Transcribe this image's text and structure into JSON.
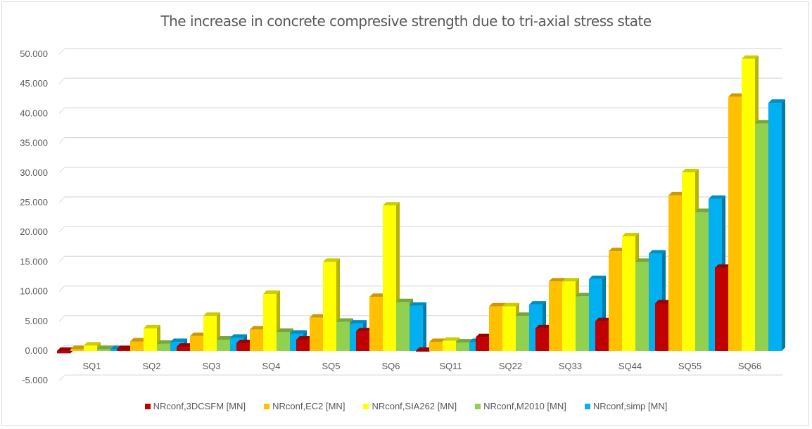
{
  "chart_data": {
    "type": "bar",
    "title": "The increase in concrete compresive strength due to tri-axial stress state",
    "xlabel": "",
    "ylabel": "",
    "ylim": [
      -5,
      50
    ],
    "yticks": [
      -5,
      0,
      5,
      10,
      15,
      20,
      25,
      30,
      35,
      40,
      45,
      50
    ],
    "ytick_labels": [
      "-5.000",
      "0.000",
      "5.000",
      "10.000",
      "15.000",
      "20.000",
      "25.000",
      "30.000",
      "35.000",
      "40.000",
      "45.000",
      "50.000"
    ],
    "grid": true,
    "legend_position": "bottom",
    "style": "3d-clustered-column",
    "categories": [
      "SQ1",
      "SQ2",
      "SQ3",
      "SQ4",
      "SQ5",
      "SQ6",
      "SQ11",
      "SQ22",
      "SQ33",
      "SQ44",
      "SQ55",
      "SQ66"
    ],
    "series": [
      {
        "name": "NRconf,3DCSFM [MN]",
        "color": "#c00000",
        "values": [
          -0.4,
          0.3,
          0.7,
          1.3,
          1.9,
          3.3,
          -0.1,
          2.3,
          3.8,
          5.0,
          8.0,
          14.0
        ]
      },
      {
        "name": "NRconf,EC2 [MN]",
        "color": "#ffc000",
        "values": [
          0.3,
          1.6,
          2.5,
          3.6,
          5.6,
          9.1,
          1.5,
          7.5,
          11.7,
          16.8,
          26.2,
          42.8
        ]
      },
      {
        "name": "NRconf,SIA262 [MN]",
        "color": "#ffff00",
        "values": [
          0.9,
          3.8,
          5.9,
          9.6,
          15.0,
          24.5,
          1.7,
          7.5,
          11.7,
          19.3,
          30.1,
          49.2
        ]
      },
      {
        "name": "NRconf,M2010 [MN]",
        "color": "#92d050",
        "values": [
          0.3,
          1.2,
          1.9,
          3.2,
          4.9,
          8.2,
          1.4,
          5.9,
          9.2,
          15.0,
          23.4,
          38.3
        ]
      },
      {
        "name": "NRconf,simp [MN]",
        "color": "#00b0f0",
        "values": [
          0.3,
          1.5,
          2.2,
          2.9,
          4.6,
          7.6,
          1.5,
          7.8,
          12.1,
          16.4,
          25.6,
          41.8
        ]
      }
    ]
  }
}
